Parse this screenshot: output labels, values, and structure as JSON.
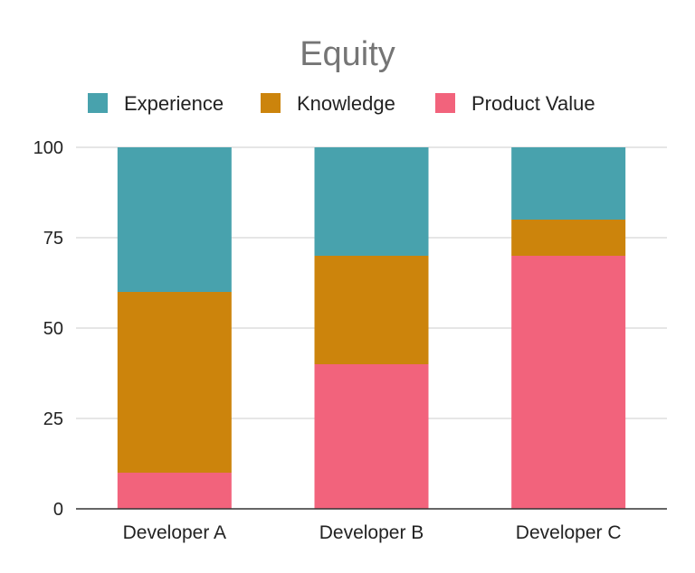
{
  "chart_data": {
    "type": "bar",
    "stacked": true,
    "title": "Equity",
    "xlabel": "",
    "ylabel": "",
    "categories": [
      "Developer A",
      "Developer B",
      "Developer C"
    ],
    "series": [
      {
        "name": "Product Value",
        "values": [
          10,
          40,
          70
        ],
        "color": "#f2637c"
      },
      {
        "name": "Knowledge",
        "values": [
          50,
          30,
          10
        ],
        "color": "#cc840c"
      },
      {
        "name": "Experience",
        "values": [
          40,
          30,
          20
        ],
        "color": "#48a2ad"
      }
    ],
    "legend_order": [
      "Experience",
      "Knowledge",
      "Product Value"
    ],
    "legend_position": "top",
    "ylim": [
      0,
      100
    ],
    "yticks": [
      0,
      25,
      50,
      75,
      100
    ],
    "grid": true
  }
}
